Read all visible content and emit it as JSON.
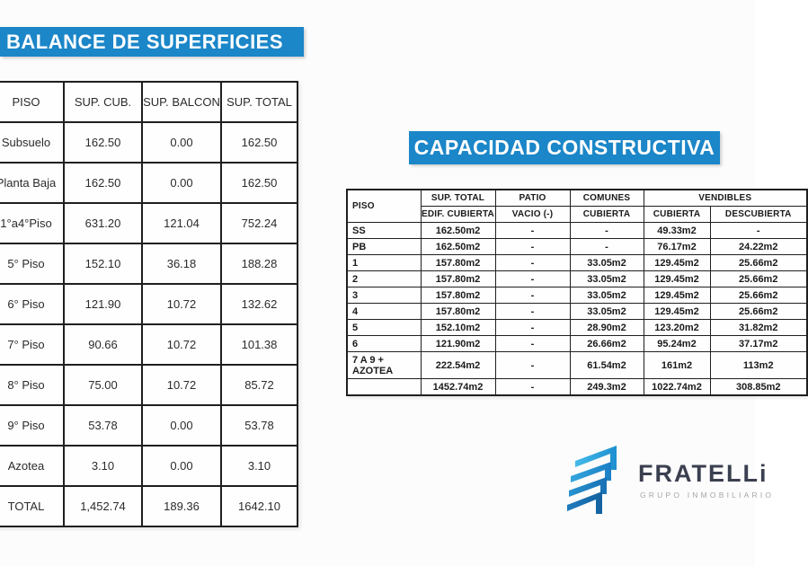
{
  "colors": {
    "banner_blue": "#1b86c8",
    "logo_navy": "#3b4050",
    "logo_blue_light": "#3cb4e5",
    "logo_blue_dark": "#15619f"
  },
  "balance_table": {
    "title": "BALANCE DE SUPERFICIES",
    "columns": [
      "PISO",
      "SUP. CUB.",
      "SUP. BALCON",
      "SUP. TOTAL"
    ],
    "rows": [
      {
        "piso": "Subsuelo",
        "cub": "162.50",
        "balcon": "0.00",
        "total": "162.50"
      },
      {
        "piso": "Planta Baja",
        "cub": "162.50",
        "balcon": "0.00",
        "total": "162.50"
      },
      {
        "piso": "1°a4°Piso",
        "cub": "631.20",
        "balcon": "121.04",
        "total": "752.24"
      },
      {
        "piso": "5° Piso",
        "cub": "152.10",
        "balcon": "36.18",
        "total": "188.28"
      },
      {
        "piso": "6° Piso",
        "cub": "121.90",
        "balcon": "10.72",
        "total": "132.62"
      },
      {
        "piso": "7° Piso",
        "cub": "90.66",
        "balcon": "10.72",
        "total": "101.38"
      },
      {
        "piso": "8° Piso",
        "cub": "75.00",
        "balcon": "10.72",
        "total": "85.72"
      },
      {
        "piso": "9° Piso",
        "cub": "53.78",
        "balcon": "0.00",
        "total": "53.78"
      },
      {
        "piso": "Azotea",
        "cub": "3.10",
        "balcon": "0.00",
        "total": "3.10"
      },
      {
        "piso": "TOTAL",
        "cub": "1,452.74",
        "balcon": "189.36",
        "total": "1642.10"
      }
    ]
  },
  "capacidad_table": {
    "title": "CAPACIDAD CONSTRUCTIVA",
    "header": {
      "piso": "PISO",
      "sup_total": "SUP. TOTAL",
      "sup_total_sub": "EDIF. CUBIERTA",
      "patio": "PATIO",
      "patio_sub": "VACIO (-)",
      "comunes": "COMUNES",
      "comunes_sub": "CUBIERTA",
      "vendibles": "VENDIBLES",
      "vendibles_sub_cub": "CUBIERTA",
      "vendibles_sub_desc": "DESCUBIERTA"
    },
    "rows": [
      {
        "piso": "SS",
        "sup_total": "162.50m2",
        "patio": "-",
        "comunes": "-",
        "vend_cub": "49.33m2",
        "vend_desc": "-"
      },
      {
        "piso": "PB",
        "sup_total": "162.50m2",
        "patio": "-",
        "comunes": "-",
        "vend_cub": "76.17m2",
        "vend_desc": "24.22m2"
      },
      {
        "piso": "1",
        "sup_total": "157.80m2",
        "patio": "-",
        "comunes": "33.05m2",
        "vend_cub": "129.45m2",
        "vend_desc": "25.66m2"
      },
      {
        "piso": "2",
        "sup_total": "157.80m2",
        "patio": "-",
        "comunes": "33.05m2",
        "vend_cub": "129.45m2",
        "vend_desc": "25.66m2"
      },
      {
        "piso": "3",
        "sup_total": "157.80m2",
        "patio": "-",
        "comunes": "33.05m2",
        "vend_cub": "129.45m2",
        "vend_desc": "25.66m2"
      },
      {
        "piso": "4",
        "sup_total": "157.80m2",
        "patio": "-",
        "comunes": "33.05m2",
        "vend_cub": "129.45m2",
        "vend_desc": "25.66m2"
      },
      {
        "piso": "5",
        "sup_total": "152.10m2",
        "patio": "-",
        "comunes": "28.90m2",
        "vend_cub": "123.20m2",
        "vend_desc": "31.82m2"
      },
      {
        "piso": "6",
        "sup_total": "121.90m2",
        "patio": "-",
        "comunes": "26.66m2",
        "vend_cub": "95.24m2",
        "vend_desc": "37.17m2"
      },
      {
        "piso": "7 A 9 +\nAZOTEA",
        "sup_total": "222.54m2",
        "patio": "-",
        "comunes": "61.54m2",
        "vend_cub": "161m2",
        "vend_desc": "113m2"
      },
      {
        "piso": "",
        "sup_total": "1452.74m2",
        "patio": "-",
        "comunes": "249.3m2",
        "vend_cub": "1022.74m2",
        "vend_desc": "308.85m2"
      }
    ]
  },
  "logo": {
    "wordmark": "FRATELLi",
    "tagline": "GRUPO INMOBILIARIO"
  }
}
